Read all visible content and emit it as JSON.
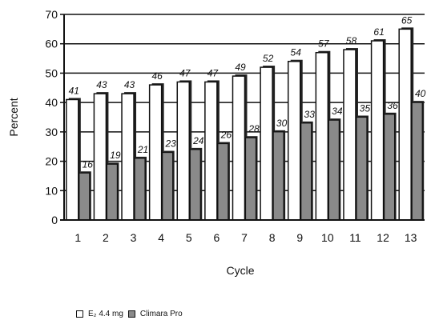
{
  "chart_data": {
    "type": "bar",
    "categories": [
      "1",
      "2",
      "3",
      "4",
      "5",
      "6",
      "7",
      "8",
      "9",
      "10",
      "11",
      "12",
      "13"
    ],
    "series": [
      {
        "name": "E₂ 4.4 mg",
        "color": "#ffffff",
        "values": [
          41,
          43,
          43,
          46,
          47,
          47,
          49,
          52,
          54,
          57,
          58,
          61,
          65
        ]
      },
      {
        "name": "Climara Pro",
        "color": "#8a8a8a",
        "values": [
          16,
          19,
          21,
          23,
          24,
          26,
          28,
          30,
          33,
          34,
          35,
          36,
          40
        ]
      }
    ],
    "xlabel": "Cycle",
    "ylabel": "Percent",
    "ylim": [
      0,
      70
    ],
    "yticks": [
      0,
      10,
      20,
      30,
      40,
      50,
      60,
      70
    ],
    "grid": true,
    "legend_placement": "bottom-left"
  }
}
